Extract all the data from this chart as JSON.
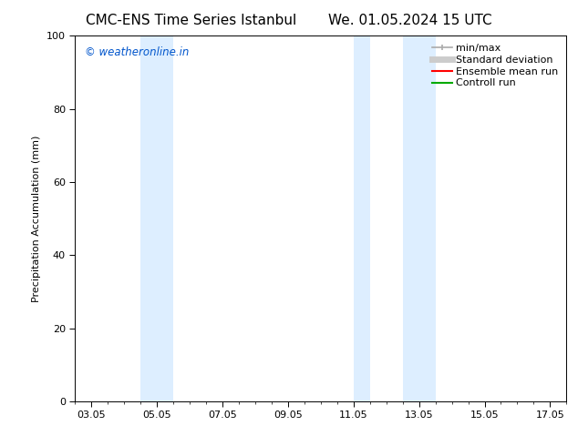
{
  "title_left": "CMC-ENS Time Series Istanbul",
  "title_right": "We. 01.05.2024 15 UTC",
  "ylabel": "Precipitation Accumulation (mm)",
  "watermark": "© weatheronline.in",
  "watermark_color": "#0055cc",
  "ylim": [
    0,
    100
  ],
  "xlim_start": 2.5,
  "xlim_end": 17.5,
  "xtick_labels": [
    "03.05",
    "05.05",
    "07.05",
    "09.05",
    "11.05",
    "13.05",
    "15.05",
    "17.05"
  ],
  "xtick_positions": [
    3,
    5,
    7,
    9,
    11,
    13,
    15,
    17
  ],
  "ytick_positions": [
    0,
    20,
    40,
    60,
    80,
    100
  ],
  "shaded_bands": [
    {
      "x_start": 4.5,
      "x_end": 5.5,
      "color": "#ddeeff"
    },
    {
      "x_start": 11.0,
      "x_end": 11.5,
      "color": "#ddeeff"
    },
    {
      "x_start": 12.5,
      "x_end": 13.5,
      "color": "#ddeeff"
    }
  ],
  "legend_items": [
    {
      "label": "min/max",
      "color": "#aaaaaa",
      "lw": 1.2,
      "style": "line_with_caps"
    },
    {
      "label": "Standard deviation",
      "color": "#cccccc",
      "lw": 5,
      "style": "line"
    },
    {
      "label": "Ensemble mean run",
      "color": "#ff0000",
      "lw": 1.5,
      "style": "line"
    },
    {
      "label": "Controll run",
      "color": "#00aa00",
      "lw": 1.5,
      "style": "line"
    }
  ],
  "background_color": "#ffffff",
  "spine_color": "#000000",
  "title_fontsize": 11,
  "axis_label_fontsize": 8,
  "tick_fontsize": 8,
  "legend_fontsize": 8
}
